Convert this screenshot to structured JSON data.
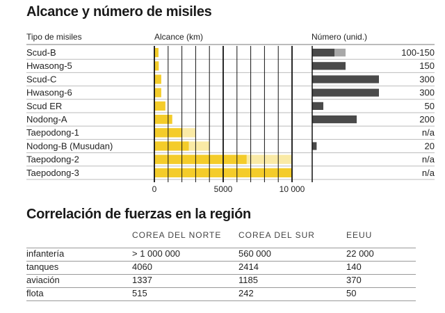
{
  "missiles": {
    "title": "Alcance y número de misiles",
    "col_type": "Tipo de misiles",
    "col_range": "Alcance (km)",
    "col_number": "Número (unid.)"
  },
  "chart_data": {
    "type": "bar",
    "title": "Alcance y número de misiles",
    "categories": [
      "Scud-B",
      "Hwasong-5",
      "Scud-C",
      "Hwasong-6",
      "Scud ER",
      "Nodong-A",
      "Taepodong-1",
      "Nodong-B (Musudan)",
      "Taepodong-2",
      "Taepodong-3"
    ],
    "range_km": {
      "xlabel": "Alcance (km)",
      "xlim": [
        0,
        10000
      ],
      "ticks": [
        "0",
        "5000",
        "10 000"
      ],
      "min": [
        300,
        320,
        500,
        500,
        800,
        1300,
        2000,
        2500,
        6700,
        10000
      ],
      "max": [
        300,
        320,
        500,
        500,
        800,
        1300,
        3000,
        4000,
        10000,
        10000
      ]
    },
    "number": {
      "xlabel": "Número (unid.)",
      "xlim": [
        0,
        300
      ],
      "min": [
        100,
        150,
        300,
        300,
        50,
        200,
        null,
        20,
        null,
        null
      ],
      "max": [
        150,
        150,
        300,
        300,
        50,
        200,
        null,
        20,
        null,
        null
      ],
      "labels": [
        "100-150",
        "150",
        "300",
        "300",
        "50",
        "200",
        "n/a",
        "20",
        "n/a",
        "n/a"
      ]
    }
  },
  "forces": {
    "title": "Correlación de fuerzas en la región",
    "columns": [
      "COREA DEL NORTE",
      "COREA DEL SUR",
      "EEUU"
    ],
    "rows": [
      {
        "label": "infantería",
        "values": [
          "> 1 000 000",
          "560 000",
          "22 000"
        ]
      },
      {
        "label": "tanques",
        "values": [
          "4060",
          "2414",
          "140"
        ]
      },
      {
        "label": "aviación",
        "values": [
          "1337",
          "1185",
          "370"
        ]
      },
      {
        "label": "flota",
        "values": [
          "515",
          "242",
          "50"
        ]
      }
    ]
  },
  "colors": {
    "bar_solid": "#f4cc2a",
    "bar_light": "#faeaa6",
    "count_dark": "#4a4a4a",
    "count_light": "#a8a8a8",
    "grid": "#111111",
    "row_line": "#bbbbbb"
  }
}
